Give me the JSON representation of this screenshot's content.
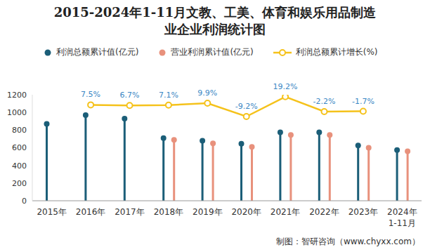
{
  "chart_data": {
    "type": "bar",
    "title": "2015-2024年1-11月文教、工美、体育和娱乐用品制造\n业企业利润统计图",
    "source": "制图：智研咨询（www.chyxx.com）",
    "categories": [
      "2015年",
      "2016年",
      "2017年",
      "2018年",
      "2019年",
      "2020年",
      "2021年",
      "2022年",
      "2023年",
      "2024年\n1-11月"
    ],
    "series": [
      {
        "name": "利润总额累计值(亿元)",
        "type": "bar",
        "color": "#1b5e78",
        "marker": "circle",
        "values": [
          870,
          970,
          930,
          710,
          680,
          645,
          775,
          775,
          625,
          575
        ]
      },
      {
        "name": "营业利润累计值(亿元)",
        "type": "bar",
        "color": "#e8917c",
        "marker": "circle",
        "values": [
          null,
          null,
          null,
          690,
          650,
          610,
          745,
          745,
          600,
          560
        ]
      },
      {
        "name": "利润总额累计增长(%)",
        "type": "line",
        "color": "#f5c21b",
        "marker": "circle",
        "line_style": "solid",
        "axis": "y2",
        "data_labels": true,
        "values": [
          null,
          7.5,
          6.7,
          7.1,
          9.9,
          -9.2,
          19.2,
          -2.2,
          -1.7,
          null
        ],
        "value_labels": [
          null,
          "7.5%",
          "6.7%",
          "7.1%",
          "9.9%",
          "-9.2%",
          "19.2%",
          "-2.2%",
          "-1.7%",
          null
        ]
      }
    ],
    "ylim": [
      0,
      1200
    ],
    "yticks": [
      0,
      200,
      400,
      600,
      800,
      1000,
      1200
    ],
    "y2lim": [
      -130,
      22
    ],
    "grid": false,
    "legend": "top"
  }
}
